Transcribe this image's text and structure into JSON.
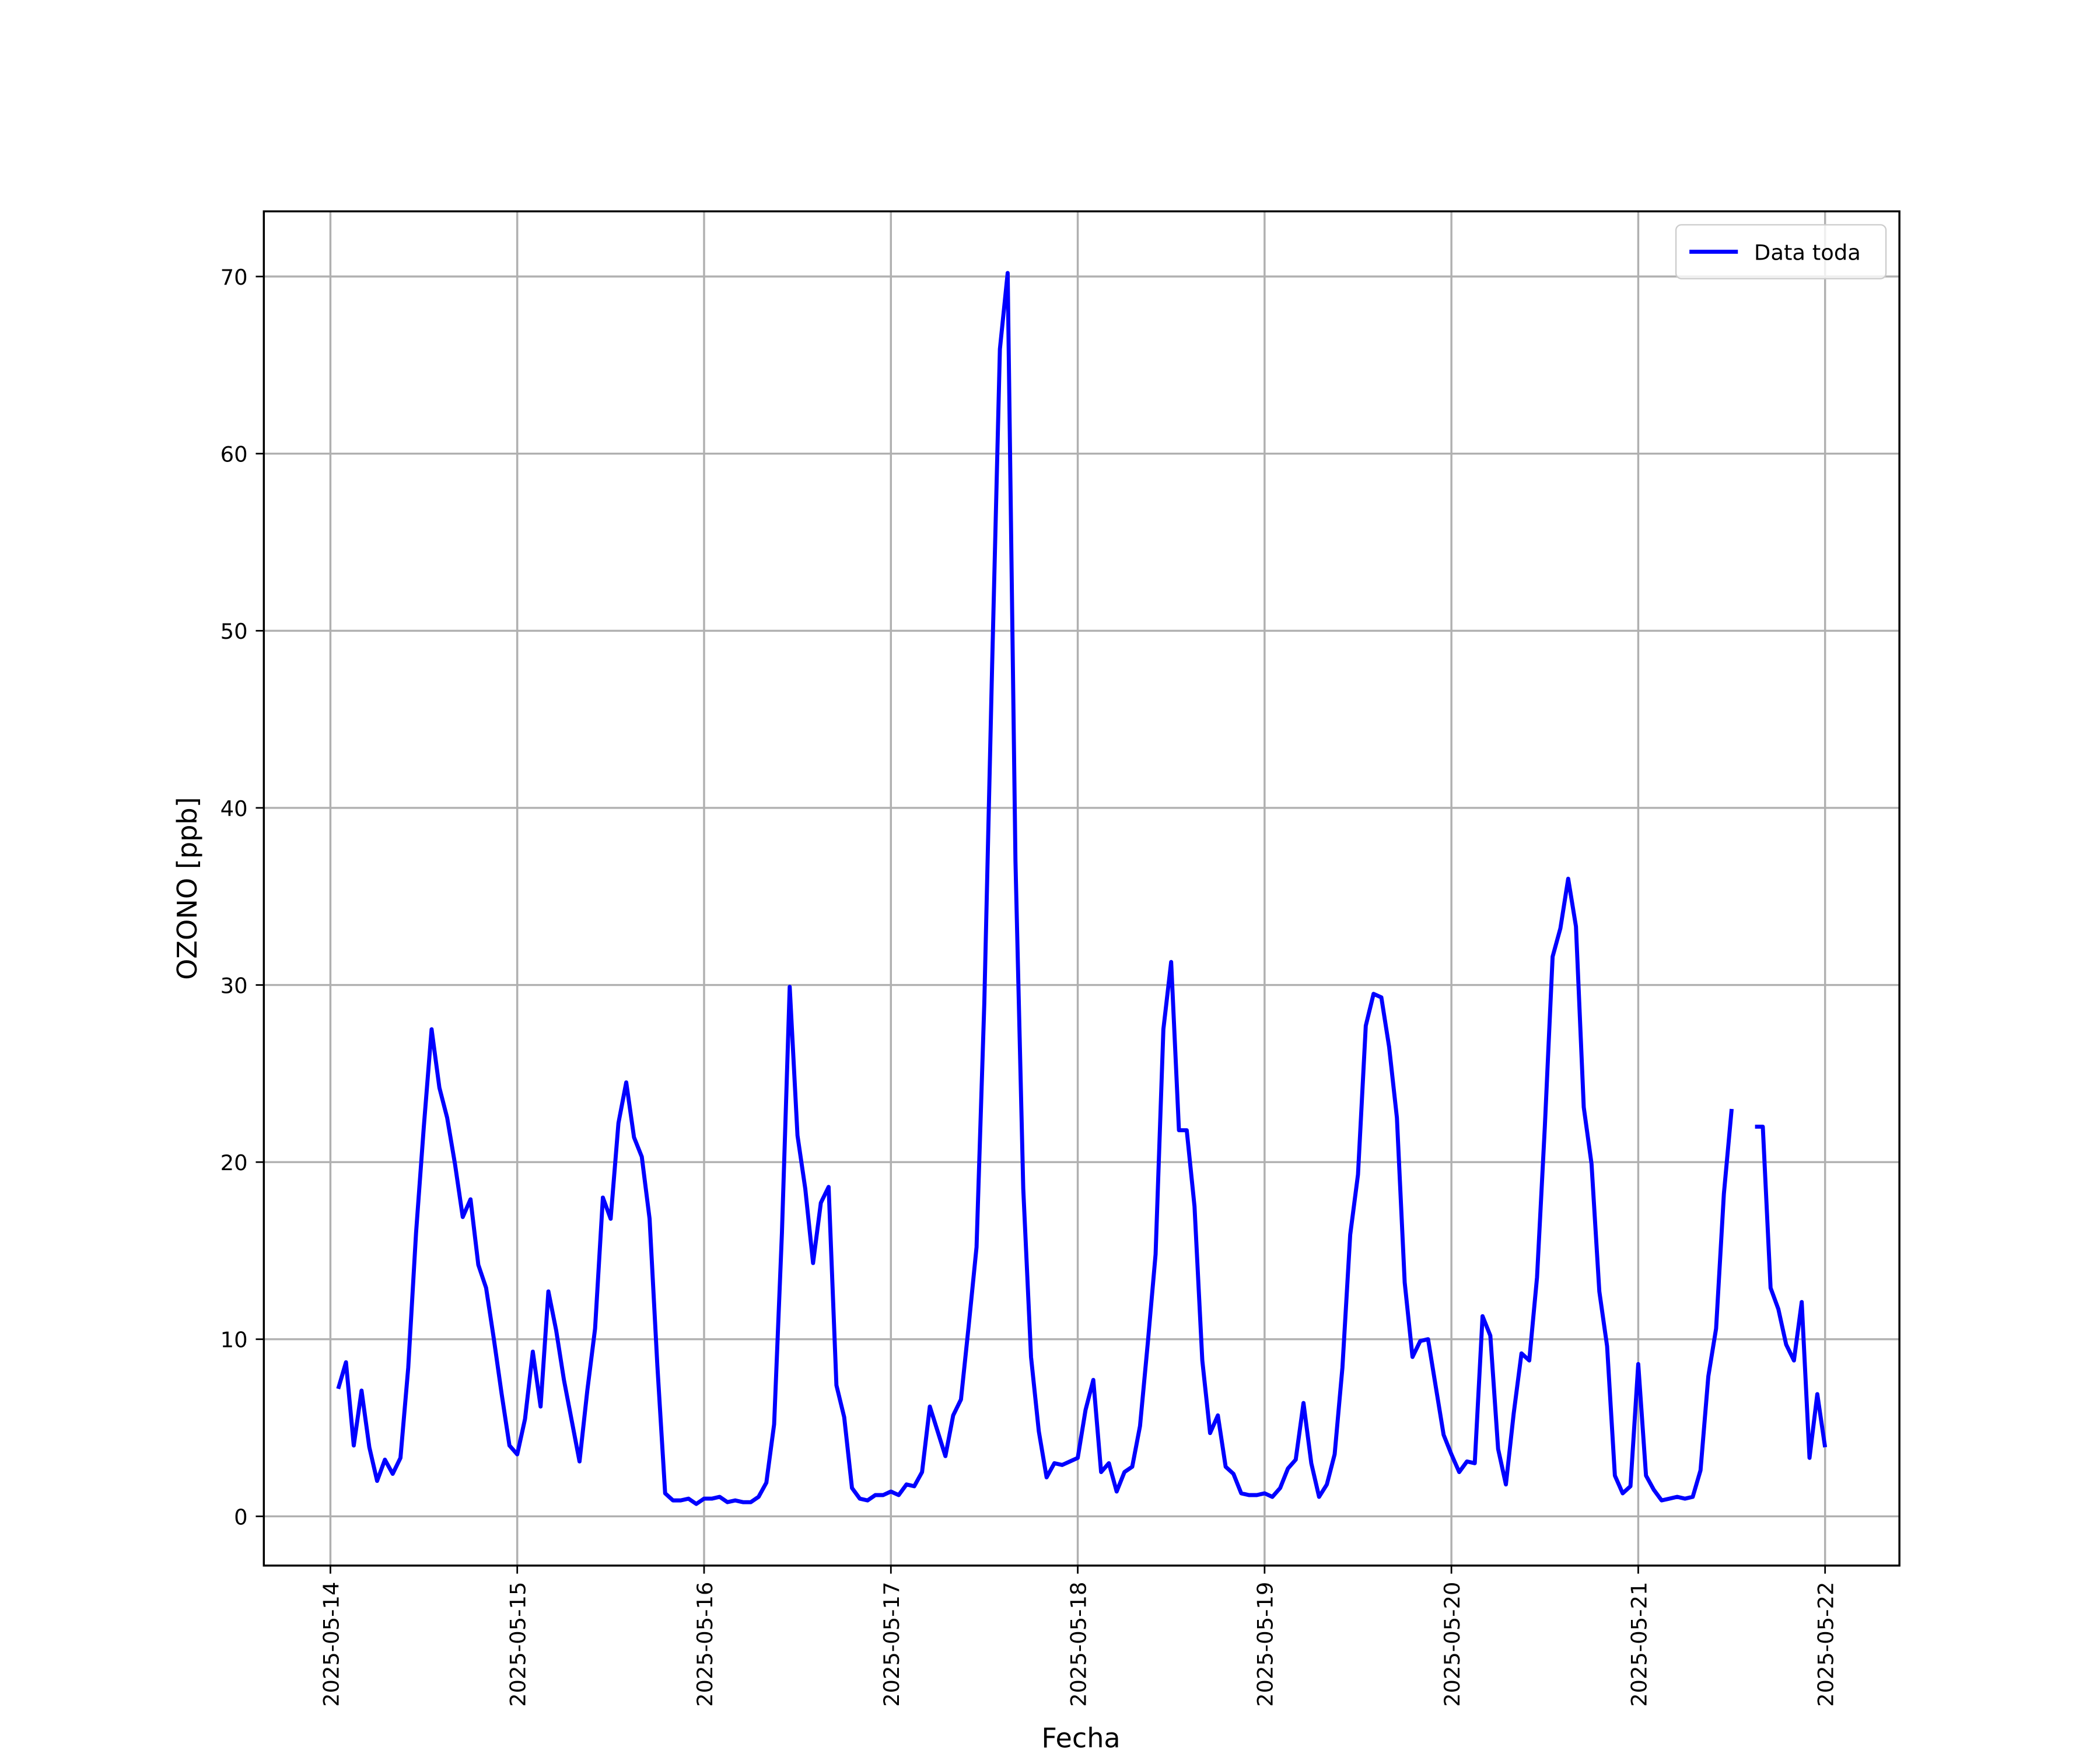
{
  "chart_data": {
    "type": "line",
    "xlabel": "Fecha",
    "ylabel": "OZONO [ppb]",
    "x": [
      "2025-05-14 01:00",
      "2025-05-14 02:00",
      "2025-05-14 03:00",
      "2025-05-14 04:00",
      "2025-05-14 05:00",
      "2025-05-14 06:00",
      "2025-05-14 07:00",
      "2025-05-14 08:00",
      "2025-05-14 09:00",
      "2025-05-14 10:00",
      "2025-05-14 11:00",
      "2025-05-14 12:00",
      "2025-05-14 13:00",
      "2025-05-14 14:00",
      "2025-05-14 15:00",
      "2025-05-14 16:00",
      "2025-05-14 17:00",
      "2025-05-14 18:00",
      "2025-05-14 19:00",
      "2025-05-14 20:00",
      "2025-05-14 21:00",
      "2025-05-14 22:00",
      "2025-05-14 23:00",
      "2025-05-15 00:00",
      "2025-05-15 01:00",
      "2025-05-15 02:00",
      "2025-05-15 03:00",
      "2025-05-15 04:00",
      "2025-05-15 05:00",
      "2025-05-15 06:00",
      "2025-05-15 07:00",
      "2025-05-15 08:00",
      "2025-05-15 09:00",
      "2025-05-15 10:00",
      "2025-05-15 11:00",
      "2025-05-15 12:00",
      "2025-05-15 13:00",
      "2025-05-15 14:00",
      "2025-05-15 15:00",
      "2025-05-15 16:00",
      "2025-05-15 17:00",
      "2025-05-15 18:00",
      "2025-05-15 19:00",
      "2025-05-15 20:00",
      "2025-05-15 21:00",
      "2025-05-15 22:00",
      "2025-05-15 23:00",
      "2025-05-16 00:00",
      "2025-05-16 01:00",
      "2025-05-16 02:00",
      "2025-05-16 03:00",
      "2025-05-16 04:00",
      "2025-05-16 05:00",
      "2025-05-16 06:00",
      "2025-05-16 07:00",
      "2025-05-16 08:00",
      "2025-05-16 09:00",
      "2025-05-16 10:00",
      "2025-05-16 11:00",
      "2025-05-16 12:00",
      "2025-05-16 13:00",
      "2025-05-16 14:00",
      "2025-05-16 15:00",
      "2025-05-16 16:00",
      "2025-05-16 17:00",
      "2025-05-16 18:00",
      "2025-05-16 19:00",
      "2025-05-16 20:00",
      "2025-05-16 21:00",
      "2025-05-16 22:00",
      "2025-05-16 23:00",
      "2025-05-17 00:00",
      "2025-05-17 01:00",
      "2025-05-17 02:00",
      "2025-05-17 03:00",
      "2025-05-17 04:00",
      "2025-05-17 05:00",
      "2025-05-17 06:00",
      "2025-05-17 07:00",
      "2025-05-17 08:00",
      "2025-05-17 09:00",
      "2025-05-17 10:00",
      "2025-05-17 11:00",
      "2025-05-17 12:00",
      "2025-05-17 13:00",
      "2025-05-17 14:00",
      "2025-05-17 15:00",
      "2025-05-17 16:00",
      "2025-05-17 17:00",
      "2025-05-17 18:00",
      "2025-05-17 19:00",
      "2025-05-17 20:00",
      "2025-05-17 21:00",
      "2025-05-17 22:00",
      "2025-05-17 23:00",
      "2025-05-18 00:00",
      "2025-05-18 01:00",
      "2025-05-18 02:00",
      "2025-05-18 03:00",
      "2025-05-18 04:00",
      "2025-05-18 05:00",
      "2025-05-18 06:00",
      "2025-05-18 07:00",
      "2025-05-18 08:00",
      "2025-05-18 09:00",
      "2025-05-18 10:00",
      "2025-05-18 11:00",
      "2025-05-18 12:00",
      "2025-05-18 13:00",
      "2025-05-18 14:00",
      "2025-05-18 15:00",
      "2025-05-18 16:00",
      "2025-05-18 17:00",
      "2025-05-18 18:00",
      "2025-05-18 19:00",
      "2025-05-18 20:00",
      "2025-05-18 21:00",
      "2025-05-18 22:00",
      "2025-05-18 23:00",
      "2025-05-19 00:00",
      "2025-05-19 01:00",
      "2025-05-19 02:00",
      "2025-05-19 03:00",
      "2025-05-19 04:00",
      "2025-05-19 05:00",
      "2025-05-19 06:00",
      "2025-05-19 07:00",
      "2025-05-19 08:00",
      "2025-05-19 09:00",
      "2025-05-19 10:00",
      "2025-05-19 11:00",
      "2025-05-19 12:00",
      "2025-05-19 13:00",
      "2025-05-19 14:00",
      "2025-05-19 15:00",
      "2025-05-19 16:00",
      "2025-05-19 17:00",
      "2025-05-19 18:00",
      "2025-05-19 19:00",
      "2025-05-19 20:00",
      "2025-05-19 21:00",
      "2025-05-19 22:00",
      "2025-05-19 23:00",
      "2025-05-20 00:00",
      "2025-05-20 01:00",
      "2025-05-20 02:00",
      "2025-05-20 03:00",
      "2025-05-20 04:00",
      "2025-05-20 05:00",
      "2025-05-20 06:00",
      "2025-05-20 07:00",
      "2025-05-20 08:00",
      "2025-05-20 09:00",
      "2025-05-20 10:00",
      "2025-05-20 11:00",
      "2025-05-20 12:00",
      "2025-05-20 13:00",
      "2025-05-20 14:00",
      "2025-05-20 15:00",
      "2025-05-20 16:00",
      "2025-05-20 17:00",
      "2025-05-20 18:00",
      "2025-05-20 19:00",
      "2025-05-20 20:00",
      "2025-05-20 21:00",
      "2025-05-20 22:00",
      "2025-05-20 23:00",
      "2025-05-21 00:00",
      "2025-05-21 01:00",
      "2025-05-21 02:00",
      "2025-05-21 03:00",
      "2025-05-21 04:00",
      "2025-05-21 05:00",
      "2025-05-21 06:00",
      "2025-05-21 07:00",
      "2025-05-21 08:00",
      "2025-05-21 09:00",
      "2025-05-21 10:00",
      "2025-05-21 11:00",
      "2025-05-21 12:00",
      "2025-05-21 13:00",
      "2025-05-21 14:00",
      "2025-05-21 15:00",
      "2025-05-21 16:00",
      "2025-05-21 17:00",
      "2025-05-21 18:00",
      "2025-05-21 19:00",
      "2025-05-21 20:00",
      "2025-05-21 21:00",
      "2025-05-21 22:00",
      "2025-05-21 23:00",
      "2025-05-22 00:00"
    ],
    "series": [
      {
        "name": "Data toda",
        "color": "#0000ff",
        "values": [
          7.2,
          8.7,
          4.0,
          7.1,
          3.9,
          2.0,
          3.2,
          2.4,
          3.3,
          8.4,
          16.0,
          22.0,
          27.5,
          24.2,
          22.5,
          19.9,
          16.9,
          17.9,
          14.2,
          12.9,
          10.0,
          6.9,
          4.0,
          3.5,
          5.5,
          9.3,
          6.2,
          12.7,
          10.5,
          7.7,
          5.4,
          3.1,
          7.1,
          10.6,
          18.0,
          16.8,
          22.2,
          24.5,
          21.4,
          20.3,
          16.8,
          8.5,
          1.3,
          0.9,
          0.9,
          1.0,
          0.7,
          1.0,
          1.0,
          1.1,
          0.8,
          0.9,
          0.8,
          0.8,
          1.1,
          1.9,
          5.2,
          16.0,
          29.9,
          21.5,
          18.5,
          14.3,
          17.7,
          18.6,
          7.4,
          5.6,
          1.6,
          1.0,
          0.9,
          1.2,
          1.2,
          1.4,
          1.2,
          1.8,
          1.7,
          2.5,
          6.2,
          4.8,
          3.4,
          5.7,
          6.6,
          10.8,
          15.2,
          29.0,
          48.0,
          65.9,
          70.2,
          37.0,
          18.5,
          9.0,
          4.8,
          2.2,
          3.0,
          2.9,
          3.1,
          3.3,
          6.0,
          7.7,
          2.5,
          3.0,
          1.4,
          2.5,
          2.8,
          5.1,
          9.8,
          14.8,
          27.5,
          31.3,
          21.8,
          21.8,
          17.5,
          8.8,
          4.7,
          5.7,
          2.8,
          2.4,
          1.3,
          1.2,
          1.2,
          1.3,
          1.1,
          1.6,
          2.7,
          3.2,
          6.4,
          3.0,
          1.1,
          1.8,
          3.5,
          8.4,
          15.9,
          19.3,
          27.7,
          29.5,
          29.3,
          26.5,
          22.5,
          13.2,
          9.0,
          9.9,
          10.0,
          7.3,
          4.6,
          3.5,
          2.5,
          3.1,
          3.0,
          11.3,
          10.2,
          3.8,
          1.8,
          5.8,
          9.2,
          8.8,
          13.5,
          22.0,
          31.6,
          33.2,
          36.0,
          33.3,
          23.1,
          19.9,
          12.7,
          9.6,
          2.3,
          1.3,
          1.7,
          8.6,
          2.3,
          1.5,
          0.9,
          1.0,
          1.1,
          1.0,
          1.1,
          2.6,
          7.9,
          10.6,
          18.2,
          23.0,
          null,
          null,
          22.0,
          22.0,
          12.9,
          11.7,
          9.7,
          8.8,
          12.1,
          3.3,
          6.9,
          3.9
        ]
      }
    ],
    "xlim": [
      "2025-05-13 15:27",
      "2025-05-22 09:33"
    ],
    "xticks": [
      "2025-05-14",
      "2025-05-15",
      "2025-05-16",
      "2025-05-17",
      "2025-05-18",
      "2025-05-19",
      "2025-05-20",
      "2025-05-21",
      "2025-05-22"
    ],
    "ylim": [
      -2.78,
      73.68
    ],
    "yticks": [
      0,
      10,
      20,
      30,
      40,
      50,
      60,
      70
    ],
    "grid": true,
    "legend": "upper right"
  }
}
